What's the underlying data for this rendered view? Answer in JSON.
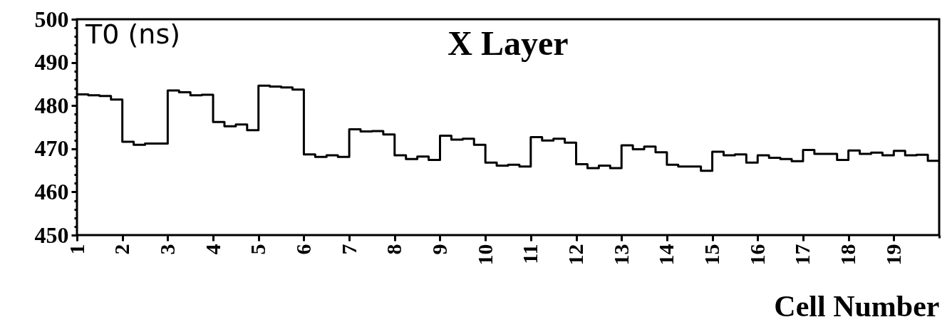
{
  "chart_data": {
    "type": "histogram",
    "title": "X Layer",
    "xlabel": "Cell Number",
    "ylabel": "T0 (ns)",
    "bins": [
      1,
      1.25,
      1.5,
      1.75,
      2,
      2.25,
      2.5,
      2.75,
      3,
      3.25,
      3.5,
      3.75,
      4,
      4.25,
      4.5,
      4.75,
      5,
      5.25,
      5.5,
      5.75,
      6,
      6.25,
      6.5,
      6.75,
      7,
      7.25,
      7.5,
      7.75,
      8,
      8.25,
      8.5,
      8.75,
      9,
      9.25,
      9.5,
      9.75,
      10,
      10.25,
      10.5,
      10.75,
      11,
      11.25,
      11.5,
      11.75,
      12,
      12.25,
      12.5,
      12.75,
      13,
      13.25,
      13.5,
      13.75,
      14,
      14.25,
      14.5,
      14.75,
      15,
      15.25,
      15.5,
      15.75,
      16,
      16.25,
      16.5,
      16.75,
      17,
      17.25,
      17.5,
      17.75,
      18,
      18.25,
      18.5,
      18.75,
      19,
      19.25,
      19.5,
      19.75,
      20
    ],
    "values": [
      482.6,
      482.4,
      482.2,
      481.4,
      471.6,
      470.9,
      471.2,
      471.2,
      483.5,
      483.1,
      482.4,
      482.5,
      476.2,
      475.2,
      475.6,
      474.3,
      484.6,
      484.4,
      484.2,
      483.7,
      468.7,
      468.1,
      468.5,
      468.1,
      474.5,
      474.0,
      474.1,
      473.3,
      468.5,
      467.6,
      468.2,
      467.4,
      473.0,
      472.1,
      472.3,
      470.9,
      466.8,
      466.1,
      466.3,
      465.9,
      472.7,
      471.9,
      472.3,
      471.4,
      466.4,
      465.5,
      466.1,
      465.5,
      470.8,
      469.9,
      470.5,
      469.2,
      466.3,
      465.9,
      465.9,
      464.9,
      469.3,
      468.5,
      468.7,
      466.8,
      468.5,
      467.9,
      467.6,
      467.1,
      469.7,
      468.8,
      468.8,
      467.4,
      469.6,
      468.8,
      469.1,
      468.5,
      469.5,
      468.5,
      468.6,
      467.2
    ],
    "color": "#000000",
    "xlim": [
      1,
      20
    ],
    "xticks": [
      1,
      2,
      3,
      4,
      5,
      6,
      7,
      8,
      9,
      10,
      11,
      12,
      13,
      14,
      15,
      16,
      17,
      18,
      19,
      {
        "value": 20,
        "label": null
      }
    ],
    "ylim": [
      450,
      500
    ],
    "yticks": [
      450,
      {
        "value": 452,
        "label": null
      },
      {
        "value": 454,
        "label": null
      },
      {
        "value": 456,
        "label": null
      },
      {
        "value": 458,
        "label": null
      },
      460,
      {
        "value": 462,
        "label": null
      },
      {
        "value": 464,
        "label": null
      },
      {
        "value": 466,
        "label": null
      },
      {
        "value": 468,
        "label": null
      },
      470,
      {
        "value": 472,
        "label": null
      },
      {
        "value": 474,
        "label": null
      },
      {
        "value": 476,
        "label": null
      },
      {
        "value": 478,
        "label": null
      },
      480,
      {
        "value": 482,
        "label": null
      },
      {
        "value": 484,
        "label": null
      },
      {
        "value": 486,
        "label": null
      },
      {
        "value": 488,
        "label": null
      },
      490,
      {
        "value": 492,
        "label": null
      },
      {
        "value": 494,
        "label": null
      },
      {
        "value": 496,
        "label": null
      },
      {
        "value": 498,
        "label": null
      },
      500
    ]
  }
}
